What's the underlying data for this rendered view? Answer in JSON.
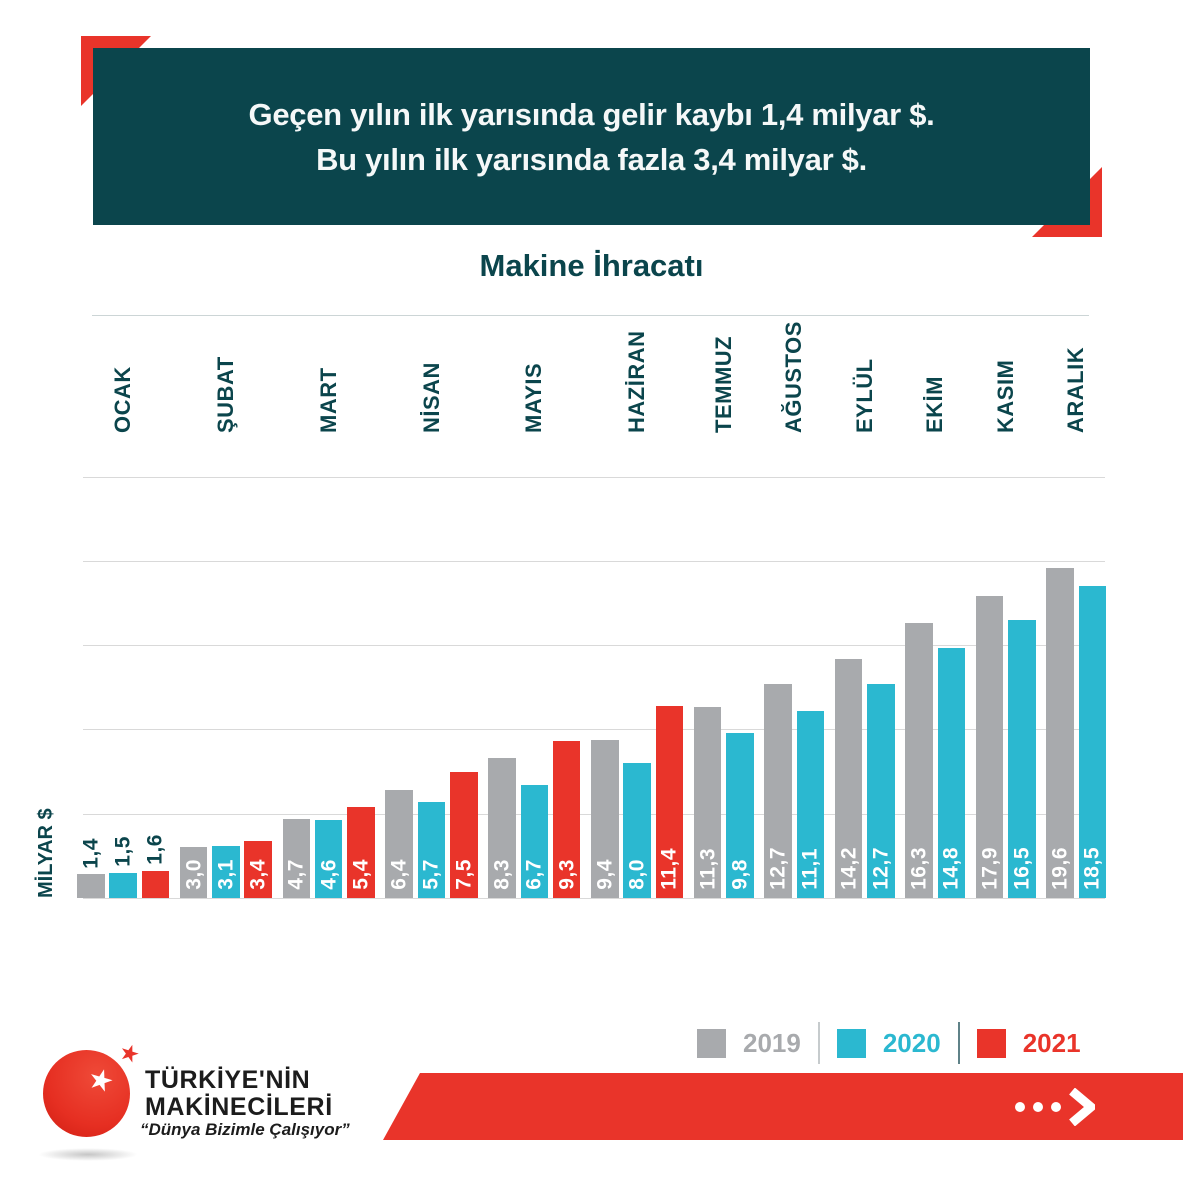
{
  "colors": {
    "teal": "#0b454c",
    "red": "#e9342a",
    "cyan": "#2bb8d0",
    "gray": "#a8aaad",
    "grid": "#d9d9d9",
    "separator": "#ccd5d6",
    "white": "#ffffff"
  },
  "banner": {
    "line1": "Geçen yılın ilk yarısında gelir kaybı 1,4 milyar $.",
    "line2": "Bu yılın ilk yarısında fazla 3,4 milyar $."
  },
  "chart_data": {
    "type": "bar",
    "title": "Makine İhracatı",
    "ylabel": "MİLYAR $",
    "ylim": [
      0,
      25
    ],
    "gridline_step": 5,
    "grid": true,
    "legend_position": "bottom-right",
    "decimal_separator": ",",
    "label_inside_min": 2,
    "categories": [
      "OCAK",
      "ŞUBAT",
      "MART",
      "NİSAN",
      "MAYIS",
      "HAZİRAN",
      "TEMMUZ",
      "AĞUSTOS",
      "EYLÜL",
      "EKİM",
      "KASIM",
      "ARALIK"
    ],
    "series": [
      {
        "name": "2019",
        "color": "#a8aaad",
        "values": [
          1.4,
          3.0,
          4.7,
          6.4,
          8.3,
          9.4,
          11.3,
          12.7,
          14.2,
          16.3,
          17.9,
          19.6
        ]
      },
      {
        "name": "2020",
        "color": "#2bb8d0",
        "values": [
          1.5,
          3.1,
          4.6,
          5.7,
          6.7,
          8.0,
          9.8,
          11.1,
          12.7,
          14.8,
          16.5,
          18.5
        ]
      },
      {
        "name": "2021",
        "color": "#e9342a",
        "values": [
          1.6,
          3.4,
          5.4,
          7.5,
          9.3,
          11.4,
          null,
          null,
          null,
          null,
          null,
          null
        ]
      }
    ]
  },
  "legend": {
    "items": [
      {
        "label": "2019",
        "color": "#a8aaad"
      },
      {
        "label": "2020",
        "color": "#2bb8d0"
      },
      {
        "label": "2021",
        "color": "#e9342a"
      }
    ],
    "separators": [
      "#c6cbcd",
      "#5f8288"
    ]
  },
  "footer": {
    "brand_line1": "TÜRKİYE'NİN",
    "brand_line2": "MAKİNECİLERİ",
    "tagline": "“Dünya Bizimle Çalışıyor”",
    "star_glyph": "★",
    "arrow_icon": "dots-chevron-right"
  }
}
